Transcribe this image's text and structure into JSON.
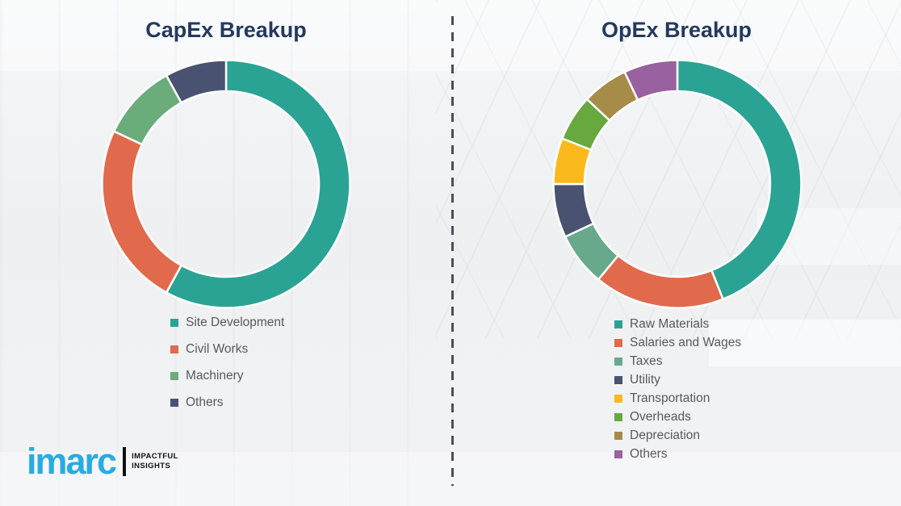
{
  "page": {
    "background_color": "#eff1f3",
    "divider_color": "#4b4f54"
  },
  "branding": {
    "logo_text": "imarc",
    "logo_color": "#29ABE2",
    "tagline_line1": "IMPACTFUL",
    "tagline_line2": "INSIGHTS"
  },
  "chart_data": [
    {
      "type": "pie",
      "subtype": "donut",
      "title": "CapEx Breakup",
      "title_color": "#24395E",
      "categories": [
        "Site Development",
        "Civil Works",
        "Machinery",
        "Others"
      ],
      "values": [
        58,
        24,
        10,
        8
      ],
      "values_are_estimates_from_arc_angles": true,
      "values_unit": "percent",
      "colors": [
        "#2BA394",
        "#E16A4C",
        "#6BAC7B",
        "#4A5271"
      ],
      "start_angle_deg": 0,
      "direction": "clockwise",
      "donut_hole_ratio": 0.75,
      "grid": false,
      "data_labels_shown": false,
      "legend_position": "below-chart-left"
    },
    {
      "type": "pie",
      "subtype": "donut",
      "title": "OpEx Breakup",
      "title_color": "#24395E",
      "categories": [
        "Raw Materials",
        "Salaries and Wages",
        "Taxes",
        "Utility",
        "Transportation",
        "Overheads",
        "Depreciation",
        "Others"
      ],
      "values": [
        44,
        17,
        7,
        7,
        6,
        6,
        6,
        7
      ],
      "values_are_estimates_from_arc_angles": true,
      "values_unit": "percent",
      "colors": [
        "#2BA394",
        "#E16A4C",
        "#68A98B",
        "#4A5271",
        "#FBB91D",
        "#67A93F",
        "#A68B49",
        "#99619F"
      ],
      "start_angle_deg": 0,
      "direction": "clockwise",
      "donut_hole_ratio": 0.75,
      "grid": false,
      "data_labels_shown": false,
      "legend_position": "below-chart-left"
    }
  ]
}
